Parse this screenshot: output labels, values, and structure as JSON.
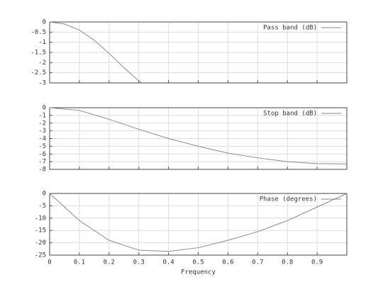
{
  "chart_data": [
    {
      "type": "line",
      "legend": "upper right",
      "grid": true,
      "show_xtick_labels": false,
      "x": [
        0,
        0.05,
        0.1,
        0.15,
        0.2,
        0.25,
        0.3,
        0.31
      ],
      "series": [
        {
          "name": "Pass band (dB)",
          "color": "#8a8a8a",
          "values": [
            0,
            -0.1,
            -0.4,
            -0.9,
            -1.55,
            -2.25,
            -2.9,
            -3
          ]
        }
      ],
      "xlim": [
        0,
        1
      ],
      "xticks": [
        0,
        0.1,
        0.2,
        0.3,
        0.4,
        0.5,
        0.6,
        0.7,
        0.8,
        0.9
      ],
      "ylim": [
        -3,
        0
      ],
      "yticks": [
        0,
        -0.5,
        -1,
        -1.5,
        -2,
        -2.5,
        -3
      ]
    },
    {
      "type": "line",
      "legend": "upper right",
      "grid": true,
      "show_xtick_labels": false,
      "x": [
        0,
        0.1,
        0.2,
        0.3,
        0.4,
        0.5,
        0.6,
        0.7,
        0.8,
        0.9,
        1
      ],
      "series": [
        {
          "name": "Stop band (dB)",
          "color": "#8a8a8a",
          "values": [
            0,
            -0.35,
            -1.5,
            -2.8,
            -4,
            -5,
            -5.9,
            -6.5,
            -7,
            -7.25,
            -7.3
          ]
        }
      ],
      "xlim": [
        0,
        1
      ],
      "xticks": [
        0,
        0.1,
        0.2,
        0.3,
        0.4,
        0.5,
        0.6,
        0.7,
        0.8,
        0.9
      ],
      "ylim": [
        -8,
        0
      ],
      "yticks": [
        0,
        -1,
        -2,
        -3,
        -4,
        -5,
        -6,
        -7,
        -8
      ]
    },
    {
      "type": "line",
      "legend": "upper right",
      "grid": true,
      "show_xtick_labels": true,
      "xlabel": "Frequency",
      "x": [
        0,
        0.1,
        0.2,
        0.3,
        0.4,
        0.5,
        0.6,
        0.7,
        0.8,
        0.9,
        1
      ],
      "series": [
        {
          "name": "Phase (degrees)",
          "color": "#8a8a8a",
          "values": [
            0,
            -11,
            -19,
            -23,
            -23.5,
            -22,
            -19,
            -15.5,
            -11,
            -5.5,
            0
          ]
        }
      ],
      "xlim": [
        0,
        1
      ],
      "xticks": [
        0,
        0.1,
        0.2,
        0.3,
        0.4,
        0.5,
        0.6,
        0.7,
        0.8,
        0.9
      ],
      "ylim": [
        -25,
        0
      ],
      "yticks": [
        0,
        -5,
        -10,
        -15,
        -20,
        -25
      ]
    }
  ]
}
